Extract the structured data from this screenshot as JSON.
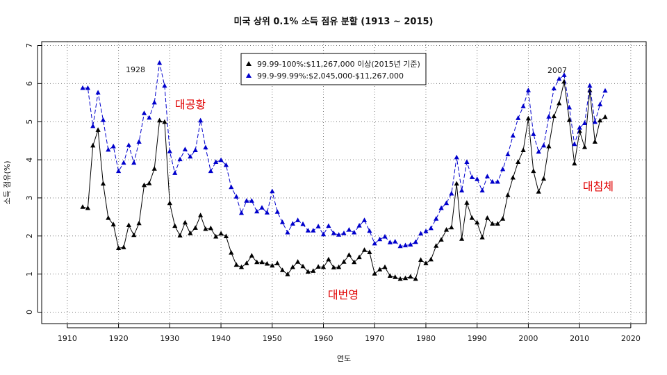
{
  "chart_data": {
    "type": "line",
    "title": "미국 상위 0.1% 소득 점유 분할 (1913 ~ 2015)",
    "xlabel": "연도",
    "ylabel": "소득 점유(%)",
    "xlim": [
      1905,
      2023
    ],
    "ylim": [
      -0.3,
      7.1
    ],
    "x_ticks": [
      1910,
      1920,
      1930,
      1940,
      1950,
      1960,
      1970,
      1980,
      1990,
      2000,
      2010,
      2020
    ],
    "y_ticks": [
      0,
      1,
      2,
      3,
      4,
      5,
      6,
      7
    ],
    "grid": true,
    "legend_position": "top-center",
    "x": [
      1913,
      1914,
      1915,
      1916,
      1917,
      1918,
      1919,
      1920,
      1921,
      1922,
      1923,
      1924,
      1925,
      1926,
      1927,
      1928,
      1929,
      1930,
      1931,
      1932,
      1933,
      1934,
      1935,
      1936,
      1937,
      1938,
      1939,
      1940,
      1941,
      1942,
      1943,
      1944,
      1945,
      1946,
      1947,
      1948,
      1949,
      1950,
      1951,
      1952,
      1953,
      1954,
      1955,
      1956,
      1957,
      1958,
      1959,
      1960,
      1961,
      1962,
      1963,
      1964,
      1965,
      1966,
      1967,
      1968,
      1969,
      1970,
      1971,
      1972,
      1973,
      1974,
      1975,
      1976,
      1977,
      1978,
      1979,
      1980,
      1981,
      1982,
      1983,
      1984,
      1985,
      1986,
      1987,
      1988,
      1989,
      1990,
      1991,
      1992,
      1993,
      1994,
      1995,
      1996,
      1997,
      1998,
      1999,
      2000,
      2001,
      2002,
      2003,
      2004,
      2005,
      2006,
      2007,
      2008,
      2009,
      2010,
      2011,
      2012,
      2013,
      2014,
      2015
    ],
    "series": [
      {
        "name": "99.99-100%:$11,267,000 이상(2015년 기준)",
        "color": "#000000",
        "line_style": "solid",
        "values": [
          2.76,
          2.73,
          4.37,
          4.78,
          3.37,
          2.47,
          2.3,
          1.68,
          1.7,
          2.28,
          2.02,
          2.33,
          3.33,
          3.38,
          3.76,
          5.03,
          4.99,
          2.86,
          2.26,
          2.01,
          2.35,
          2.07,
          2.21,
          2.54,
          2.18,
          2.2,
          1.98,
          2.06,
          1.99,
          1.56,
          1.24,
          1.18,
          1.28,
          1.48,
          1.31,
          1.31,
          1.27,
          1.22,
          1.28,
          1.1,
          0.99,
          1.18,
          1.32,
          1.2,
          1.06,
          1.08,
          1.19,
          1.18,
          1.38,
          1.17,
          1.18,
          1.32,
          1.5,
          1.31,
          1.44,
          1.63,
          1.57,
          1.01,
          1.12,
          1.18,
          0.95,
          0.92,
          0.87,
          0.89,
          0.93,
          0.87,
          1.37,
          1.28,
          1.38,
          1.74,
          1.9,
          2.16,
          2.22,
          3.37,
          1.92,
          2.87,
          2.47,
          2.35,
          1.96,
          2.47,
          2.32,
          2.32,
          2.45,
          3.07,
          3.53,
          3.94,
          4.25,
          5.08,
          3.7,
          3.16,
          3.5,
          4.35,
          5.14,
          5.48,
          6.05,
          5.04,
          3.9,
          4.75,
          4.33,
          5.82,
          4.47,
          5.03,
          5.12
        ]
      },
      {
        "name": "99.9-99.99%:$2,045,000-$11,267,000",
        "color": "#0000cc",
        "line_style": "dashed",
        "values": [
          5.88,
          5.88,
          4.88,
          5.76,
          5.04,
          4.26,
          4.35,
          3.7,
          3.92,
          4.38,
          3.92,
          4.47,
          5.22,
          5.1,
          5.5,
          6.54,
          5.94,
          4.22,
          3.65,
          4.01,
          4.27,
          4.08,
          4.25,
          5.03,
          4.32,
          3.7,
          3.94,
          3.99,
          3.86,
          3.28,
          3.03,
          2.6,
          2.92,
          2.92,
          2.64,
          2.74,
          2.61,
          3.17,
          2.63,
          2.36,
          2.09,
          2.32,
          2.41,
          2.31,
          2.14,
          2.14,
          2.25,
          2.04,
          2.26,
          2.07,
          2.03,
          2.07,
          2.16,
          2.09,
          2.27,
          2.41,
          2.13,
          1.8,
          1.91,
          1.98,
          1.83,
          1.85,
          1.73,
          1.75,
          1.77,
          1.84,
          2.06,
          2.12,
          2.2,
          2.45,
          2.73,
          2.86,
          3.11,
          4.06,
          3.19,
          3.94,
          3.54,
          3.49,
          3.19,
          3.56,
          3.42,
          3.42,
          3.75,
          4.14,
          4.63,
          5.09,
          5.4,
          5.82,
          4.67,
          4.21,
          4.37,
          5.13,
          5.87,
          6.12,
          6.22,
          5.37,
          4.41,
          4.84,
          4.96,
          5.94,
          4.99,
          5.45,
          5.81
        ]
      }
    ],
    "annotations": [
      {
        "text": "1928",
        "x": 1928,
        "y": 6.54
      },
      {
        "text": "2007",
        "x": 2007,
        "y": 6.22
      },
      {
        "text": "대공황",
        "color": "#e00000"
      },
      {
        "text": "대번영",
        "color": "#e00000"
      },
      {
        "text": "대침체",
        "color": "#e00000"
      }
    ]
  }
}
